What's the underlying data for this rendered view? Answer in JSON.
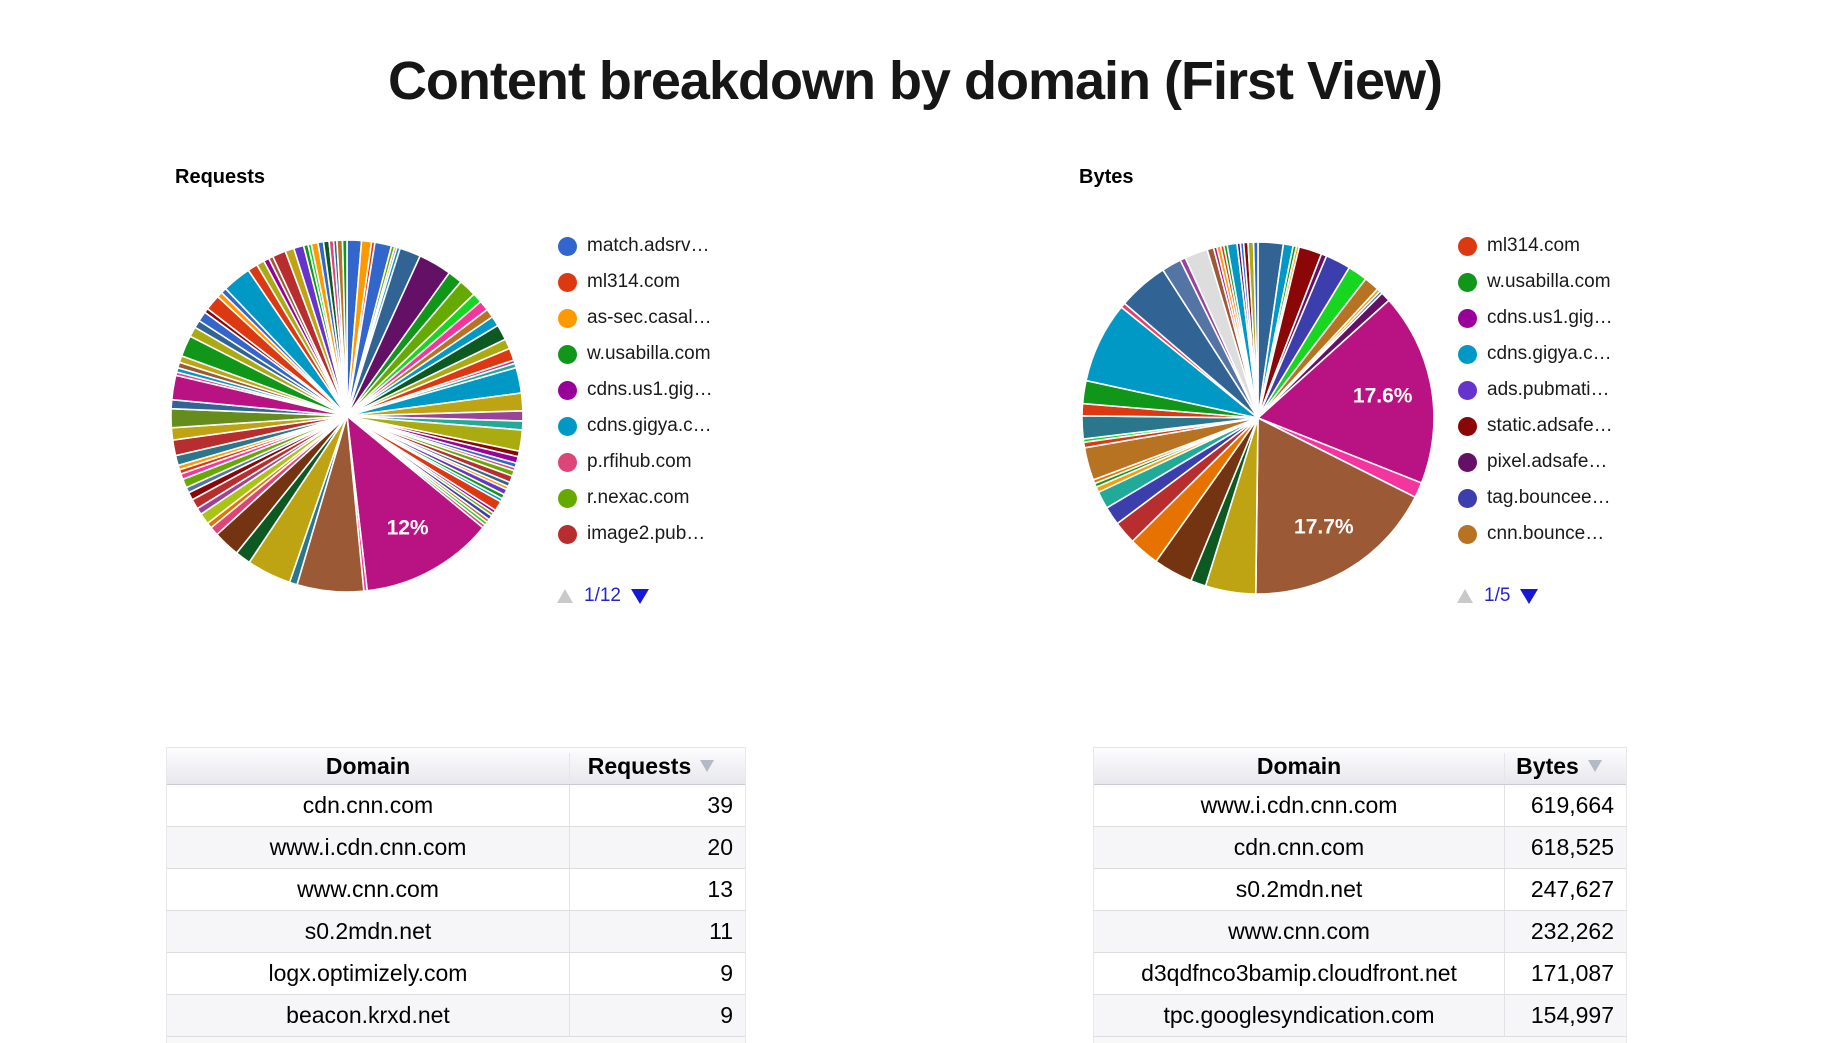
{
  "page_title": "Content breakdown by domain (First View)",
  "pagination_colors": {
    "inactive_arrow": "#c9c9c9",
    "active_arrow": "#1717d6",
    "text": "#2525cc"
  },
  "sort_icon_color": "#b3b9c5",
  "chart_data": [
    {
      "type": "pie",
      "title": "Requests",
      "legend_position": "right",
      "legend_page": "1/12",
      "legend": [
        {
          "label": "match.adsrv…",
          "color": "#3366cc"
        },
        {
          "label": "ml314.com",
          "color": "#dc3912"
        },
        {
          "label": "as-sec.casal…",
          "color": "#ff9900"
        },
        {
          "label": "w.usabilla.com",
          "color": "#109618"
        },
        {
          "label": "cdns.us1.gig…",
          "color": "#990099"
        },
        {
          "label": "cdns.gigya.c…",
          "color": "#0099c6"
        },
        {
          "label": "p.rfihub.com",
          "color": "#dd4477"
        },
        {
          "label": "r.nexac.com",
          "color": "#66aa00"
        },
        {
          "label": "image2.pub…",
          "color": "#b82e2e"
        }
      ],
      "labeled_slices": [
        {
          "label": "12%",
          "value": 12
        }
      ],
      "slices": [
        [
          1.3,
          "#3366cc"
        ],
        [
          0.9,
          "#ff9900"
        ],
        [
          0.3,
          "#dc3912"
        ],
        [
          1.5,
          "#3366cc"
        ],
        [
          0.3,
          "#66aa00"
        ],
        [
          0.2,
          "#dd4477"
        ],
        [
          0.3,
          "#0099c6"
        ],
        [
          1.9,
          "#316395"
        ],
        [
          3.0,
          "#651067"
        ],
        [
          1.3,
          "#109618"
        ],
        [
          1.6,
          "#66aa00"
        ],
        [
          0.9,
          "#16d620"
        ],
        [
          0.9,
          "#f4359e"
        ],
        [
          0.8,
          "#b77322"
        ],
        [
          0.9,
          "#0099c6"
        ],
        [
          1.4,
          "#0c5922"
        ],
        [
          0.9,
          "#aaaa11"
        ],
        [
          1.1,
          "#dc3912"
        ],
        [
          0.3,
          "#994499"
        ],
        [
          0.4,
          "#22aa99"
        ],
        [
          2.3,
          "#0099c6"
        ],
        [
          1.6,
          "#bea413"
        ],
        [
          0.9,
          "#994499"
        ],
        [
          0.8,
          "#22aa99"
        ],
        [
          1.9,
          "#aaaa11"
        ],
        [
          0.5,
          "#8b0707"
        ],
        [
          0.6,
          "#990099"
        ],
        [
          0.4,
          "#3366cc"
        ],
        [
          0.3,
          "#dd4477"
        ],
        [
          0.5,
          "#66aa00"
        ],
        [
          0.6,
          "#b82e2e"
        ],
        [
          0.4,
          "#316395"
        ],
        [
          0.3,
          "#ff9900"
        ],
        [
          0.5,
          "#6633cc"
        ],
        [
          0.4,
          "#109618"
        ],
        [
          0.3,
          "#0099c6"
        ],
        [
          0.9,
          "#dc3912"
        ],
        [
          0.3,
          "#990099"
        ],
        [
          0.3,
          "#66aa00"
        ],
        [
          0.4,
          "#3b3eac"
        ],
        [
          0.3,
          "#b77322"
        ],
        [
          0.3,
          "#16d620"
        ],
        [
          0.3,
          "#dd4477"
        ],
        [
          12,
          "#b91383",
          "12%"
        ],
        [
          0.3,
          "#f4359e"
        ],
        [
          6.0,
          "#9c5935"
        ],
        [
          0.7,
          "#2a778d"
        ],
        [
          4.0,
          "#bea413"
        ],
        [
          1.4,
          "#0c5922"
        ],
        [
          2.4,
          "#743411"
        ],
        [
          0.8,
          "#dd4477"
        ],
        [
          0.5,
          "#e67300"
        ],
        [
          1.0,
          "#a9c413"
        ],
        [
          0.6,
          "#994499"
        ],
        [
          0.9,
          "#b82e2e"
        ],
        [
          0.7,
          "#8b0707"
        ],
        [
          0.5,
          "#5574a6"
        ],
        [
          0.8,
          "#66aa00"
        ],
        [
          0.5,
          "#f4359e"
        ],
        [
          0.4,
          "#dc3912"
        ],
        [
          0.4,
          "#ff9900"
        ],
        [
          0.9,
          "#2a778d"
        ],
        [
          1.4,
          "#b82e2e"
        ],
        [
          1.1,
          "#bea413"
        ],
        [
          1.7,
          "#668d1c"
        ],
        [
          0.8,
          "#316395"
        ],
        [
          2.2,
          "#b91383"
        ],
        [
          0.3,
          "#f4359e"
        ],
        [
          0.4,
          "#0099c6"
        ],
        [
          0.5,
          "#9c5935"
        ],
        [
          0.6,
          "#bea413"
        ],
        [
          1.9,
          "#109618"
        ],
        [
          0.9,
          "#aaaa11"
        ],
        [
          0.7,
          "#316395"
        ],
        [
          0.9,
          "#3366cc"
        ],
        [
          0.4,
          "#8b0707"
        ],
        [
          1.4,
          "#dc3912"
        ],
        [
          0.5,
          "#ff9900"
        ],
        [
          0.5,
          "#3366cc"
        ],
        [
          2.6,
          "#0099c6"
        ],
        [
          0.9,
          "#dc3912"
        ],
        [
          0.7,
          "#aaaa11"
        ],
        [
          0.5,
          "#990099"
        ],
        [
          0.4,
          "#9c5935"
        ],
        [
          1.2,
          "#b82e2e"
        ],
        [
          0.8,
          "#bea413"
        ],
        [
          0.9,
          "#6633cc"
        ],
        [
          0.4,
          "#109618"
        ],
        [
          0.3,
          "#16d620"
        ],
        [
          0.6,
          "#ff9900"
        ],
        [
          0.5,
          "#3366cc"
        ],
        [
          0.5,
          "#0c5922"
        ],
        [
          0.4,
          "#dd4477"
        ],
        [
          0.3,
          "#316395"
        ],
        [
          0.5,
          "#b77322"
        ],
        [
          0.4,
          "#109618"
        ]
      ]
    },
    {
      "type": "pie",
      "title": "Bytes",
      "legend_position": "right",
      "legend_page": "1/5",
      "legend": [
        {
          "label": "ml314.com",
          "color": "#dc3912"
        },
        {
          "label": "w.usabilla.com",
          "color": "#109618"
        },
        {
          "label": "cdns.us1.gig…",
          "color": "#990099"
        },
        {
          "label": "cdns.gigya.c…",
          "color": "#0099c6"
        },
        {
          "label": "ads.pubmati…",
          "color": "#6633cc"
        },
        {
          "label": "static.adsafe…",
          "color": "#8b0707"
        },
        {
          "label": "pixel.adsafe…",
          "color": "#651067"
        },
        {
          "label": "tag.bouncee…",
          "color": "#3b3eac"
        },
        {
          "label": "cnn.bounce…",
          "color": "#b77322"
        }
      ],
      "labeled_slices": [
        {
          "label": "17.6%",
          "value": 17.6
        },
        {
          "label": "17.7%",
          "value": 17.7
        }
      ],
      "slices": [
        [
          2.3,
          "#316395"
        ],
        [
          0.9,
          "#0099c6"
        ],
        [
          0.3,
          "#109618"
        ],
        [
          0.25,
          "#ff9900"
        ],
        [
          2.1,
          "#8b0707"
        ],
        [
          0.5,
          "#651067"
        ],
        [
          2.3,
          "#3b3eac"
        ],
        [
          1.8,
          "#16d620"
        ],
        [
          1.4,
          "#b77322"
        ],
        [
          0.3,
          "#ff9900"
        ],
        [
          0.25,
          "#3366cc"
        ],
        [
          0.9,
          "#651067"
        ],
        [
          17.6,
          "#b91383",
          "17.6%"
        ],
        [
          1.4,
          "#f4359e"
        ],
        [
          17.7,
          "#9c5935",
          "17.7%"
        ],
        [
          4.6,
          "#bea413"
        ],
        [
          1.4,
          "#0c5922"
        ],
        [
          3.6,
          "#743411"
        ],
        [
          2.8,
          "#e67300"
        ],
        [
          2.1,
          "#b82e2e"
        ],
        [
          1.7,
          "#3b3eac"
        ],
        [
          1.6,
          "#22aa99"
        ],
        [
          0.5,
          "#ff9900"
        ],
        [
          0.35,
          "#109618"
        ],
        [
          0.35,
          "#e67300"
        ],
        [
          3.0,
          "#b77322"
        ],
        [
          0.5,
          "#dc3912"
        ],
        [
          0.3,
          "#16d620"
        ],
        [
          2.1,
          "#2a778d"
        ],
        [
          1.1,
          "#dc3912"
        ],
        [
          2.1,
          "#109618"
        ],
        [
          7.4,
          "#0099c6"
        ],
        [
          0.45,
          "#dd4477"
        ],
        [
          4.6,
          "#316395"
        ],
        [
          1.8,
          "#5574a6"
        ],
        [
          0.5,
          "#994499"
        ],
        [
          2.1,
          "#dddddd"
        ],
        [
          0.6,
          "#9c5935"
        ],
        [
          0.3,
          "#b91383"
        ],
        [
          0.35,
          "#ff9900"
        ],
        [
          0.3,
          "#dc3912"
        ],
        [
          0.3,
          "#109618"
        ],
        [
          0.9,
          "#0099c6"
        ],
        [
          0.3,
          "#651067"
        ],
        [
          0.3,
          "#3366cc"
        ],
        [
          0.4,
          "#8b0707"
        ],
        [
          0.5,
          "#aaaa11"
        ],
        [
          0.4,
          "#3366cc"
        ]
      ]
    },
    {
      "type": "table",
      "title": "Requests by domain",
      "columns": [
        "Domain",
        "Requests"
      ],
      "sorted_by": "Requests",
      "rows": [
        [
          "cdn.cnn.com",
          "39"
        ],
        [
          "www.i.cdn.cnn.com",
          "20"
        ],
        [
          "www.cnn.com",
          "13"
        ],
        [
          "s0.2mdn.net",
          "11"
        ],
        [
          "logx.optimizely.com",
          "9"
        ],
        [
          "beacon.krxd.net",
          "9"
        ]
      ]
    },
    {
      "type": "table",
      "title": "Bytes by domain",
      "columns": [
        "Domain",
        "Bytes"
      ],
      "sorted_by": "Bytes",
      "rows": [
        [
          "www.i.cdn.cnn.com",
          "619,664"
        ],
        [
          "cdn.cnn.com",
          "618,525"
        ],
        [
          "s0.2mdn.net",
          "247,627"
        ],
        [
          "www.cnn.com",
          "232,262"
        ],
        [
          "d3qdfnco3bamip.cloudfront.net",
          "171,087"
        ],
        [
          "tpc.googlesyndication.com",
          "154,997"
        ]
      ]
    }
  ]
}
